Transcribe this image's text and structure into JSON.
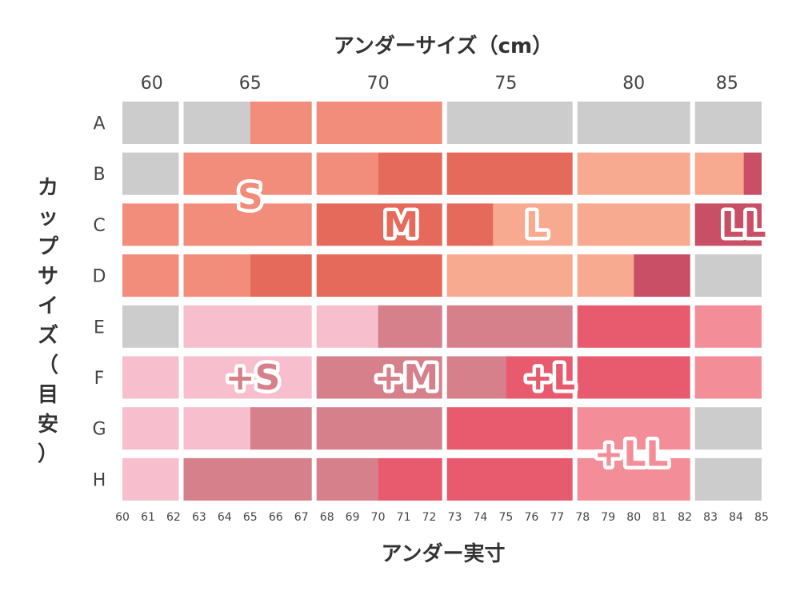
{
  "chart_data": {
    "type": "heatmap",
    "x_title": "アンダーサイズ（cm）",
    "y_title": "カップサイズ（目安）",
    "bottom_title": "アンダー実寸",
    "size_ticks": [
      "60",
      "65",
      "70",
      "75",
      "80",
      "85"
    ],
    "cup_ticks": [
      "A",
      "B",
      "C",
      "D",
      "E",
      "F",
      "G",
      "H"
    ],
    "actual_ticks": [
      "60",
      "61",
      "62",
      "63",
      "64",
      "65",
      "66",
      "67",
      "68",
      "69",
      "70",
      "71",
      "72",
      "73",
      "74",
      "75",
      "76",
      "77",
      "78",
      "79",
      "80",
      "81",
      "82",
      "83",
      "84",
      "85"
    ],
    "x_range": [
      60,
      85
    ],
    "block_edges": [
      60,
      62.3,
      67.5,
      72.6,
      77.7,
      82.3,
      85
    ],
    "size_colors": {
      "none": "#cccccc",
      "S": "#f28c7b",
      "M": "#e56a5b",
      "L": "#f8aa90",
      "LL": "#c84f66",
      "+S": "#f7bfcd",
      "+M": "#d5808a",
      "+L": "#e85a6e",
      "+LL": "#f38e98"
    },
    "label_colors": {
      "S": "#f28c7b",
      "M": "#e56a5b",
      "L": "#f8aa90",
      "LL": "#c84f66",
      "+S": "#d5808a",
      "+M": "#d5808a",
      "+L": "#e85a6e",
      "+LL": "#f38e98"
    },
    "rows": [
      {
        "cup": "A",
        "segments": [
          {
            "from": 60,
            "to": 62.3,
            "size": "none"
          },
          {
            "from": 62.3,
            "to": 65,
            "size": "none"
          },
          {
            "from": 65,
            "to": 67.5,
            "size": "S"
          },
          {
            "from": 67.5,
            "to": 72.6,
            "size": "S"
          },
          {
            "from": 72.6,
            "to": 77.7,
            "size": "none"
          },
          {
            "from": 77.7,
            "to": 82.3,
            "size": "none"
          },
          {
            "from": 82.3,
            "to": 85,
            "size": "none"
          }
        ]
      },
      {
        "cup": "B",
        "segments": [
          {
            "from": 60,
            "to": 62.3,
            "size": "none"
          },
          {
            "from": 62.3,
            "to": 67.5,
            "size": "S"
          },
          {
            "from": 67.5,
            "to": 70,
            "size": "S"
          },
          {
            "from": 70,
            "to": 72.6,
            "size": "M"
          },
          {
            "from": 72.6,
            "to": 77.7,
            "size": "M"
          },
          {
            "from": 77.7,
            "to": 82.3,
            "size": "L"
          },
          {
            "from": 82.3,
            "to": 84.3,
            "size": "L"
          },
          {
            "from": 84.3,
            "to": 85,
            "size": "LL"
          }
        ]
      },
      {
        "cup": "C",
        "segments": [
          {
            "from": 60,
            "to": 62.3,
            "size": "S"
          },
          {
            "from": 62.3,
            "to": 67.5,
            "size": "S"
          },
          {
            "from": 67.5,
            "to": 72.6,
            "size": "M"
          },
          {
            "from": 72.6,
            "to": 74.5,
            "size": "M"
          },
          {
            "from": 74.5,
            "to": 77.7,
            "size": "L"
          },
          {
            "from": 77.7,
            "to": 82.3,
            "size": "L"
          },
          {
            "from": 82.3,
            "to": 85,
            "size": "LL"
          }
        ]
      },
      {
        "cup": "D",
        "segments": [
          {
            "from": 60,
            "to": 62.3,
            "size": "S"
          },
          {
            "from": 62.3,
            "to": 65,
            "size": "S"
          },
          {
            "from": 65,
            "to": 67.5,
            "size": "M"
          },
          {
            "from": 67.5,
            "to": 72.6,
            "size": "M"
          },
          {
            "from": 72.6,
            "to": 77.7,
            "size": "L"
          },
          {
            "from": 77.7,
            "to": 80,
            "size": "L"
          },
          {
            "from": 80,
            "to": 82.3,
            "size": "LL"
          },
          {
            "from": 82.3,
            "to": 85,
            "size": "none"
          }
        ]
      },
      {
        "cup": "E",
        "segments": [
          {
            "from": 60,
            "to": 62.3,
            "size": "none"
          },
          {
            "from": 62.3,
            "to": 67.5,
            "size": "+S"
          },
          {
            "from": 67.5,
            "to": 70,
            "size": "+S"
          },
          {
            "from": 70,
            "to": 72.6,
            "size": "+M"
          },
          {
            "from": 72.6,
            "to": 77.7,
            "size": "+M"
          },
          {
            "from": 77.7,
            "to": 82.3,
            "size": "+L"
          },
          {
            "from": 82.3,
            "to": 85,
            "size": "+LL"
          }
        ]
      },
      {
        "cup": "F",
        "segments": [
          {
            "from": 60,
            "to": 62.3,
            "size": "+S"
          },
          {
            "from": 62.3,
            "to": 67.5,
            "size": "+S"
          },
          {
            "from": 67.5,
            "to": 72.6,
            "size": "+M"
          },
          {
            "from": 72.6,
            "to": 75,
            "size": "+M"
          },
          {
            "from": 75,
            "to": 77.7,
            "size": "+L"
          },
          {
            "from": 77.7,
            "to": 82.3,
            "size": "+L"
          },
          {
            "from": 82.3,
            "to": 85,
            "size": "+LL"
          }
        ]
      },
      {
        "cup": "G",
        "segments": [
          {
            "from": 60,
            "to": 62.3,
            "size": "+S"
          },
          {
            "from": 62.3,
            "to": 65,
            "size": "+S"
          },
          {
            "from": 65,
            "to": 67.5,
            "size": "+M"
          },
          {
            "from": 67.5,
            "to": 72.6,
            "size": "+M"
          },
          {
            "from": 72.6,
            "to": 77.7,
            "size": "+L"
          },
          {
            "from": 77.7,
            "to": 82.3,
            "size": "+LL"
          },
          {
            "from": 82.3,
            "to": 85,
            "size": "none"
          }
        ]
      },
      {
        "cup": "H",
        "segments": [
          {
            "from": 60,
            "to": 62.3,
            "size": "+S"
          },
          {
            "from": 62.3,
            "to": 67.5,
            "size": "+M"
          },
          {
            "from": 67.5,
            "to": 70,
            "size": "+M"
          },
          {
            "from": 70,
            "to": 72.6,
            "size": "+L"
          },
          {
            "from": 72.6,
            "to": 77.7,
            "size": "+L"
          },
          {
            "from": 77.7,
            "to": 82.3,
            "size": "+LL"
          },
          {
            "from": 82.3,
            "to": 85,
            "size": "none"
          }
        ]
      }
    ],
    "zone_labels": [
      {
        "text": "S",
        "x": 65,
        "cup": "B",
        "offset": 0.45
      },
      {
        "text": "M",
        "x": 70.9,
        "cup": "C"
      },
      {
        "text": "L",
        "x": 76.2,
        "cup": "C"
      },
      {
        "text": "LL",
        "x": 84.3,
        "cup": "C"
      },
      {
        "text": "+S",
        "x": 65.1,
        "cup": "F"
      },
      {
        "text": "+M",
        "x": 71.1,
        "cup": "F"
      },
      {
        "text": "+L",
        "x": 76.7,
        "cup": "F"
      },
      {
        "text": "+LL",
        "x": 79.9,
        "cup": "G",
        "offset": 0.5
      }
    ]
  }
}
